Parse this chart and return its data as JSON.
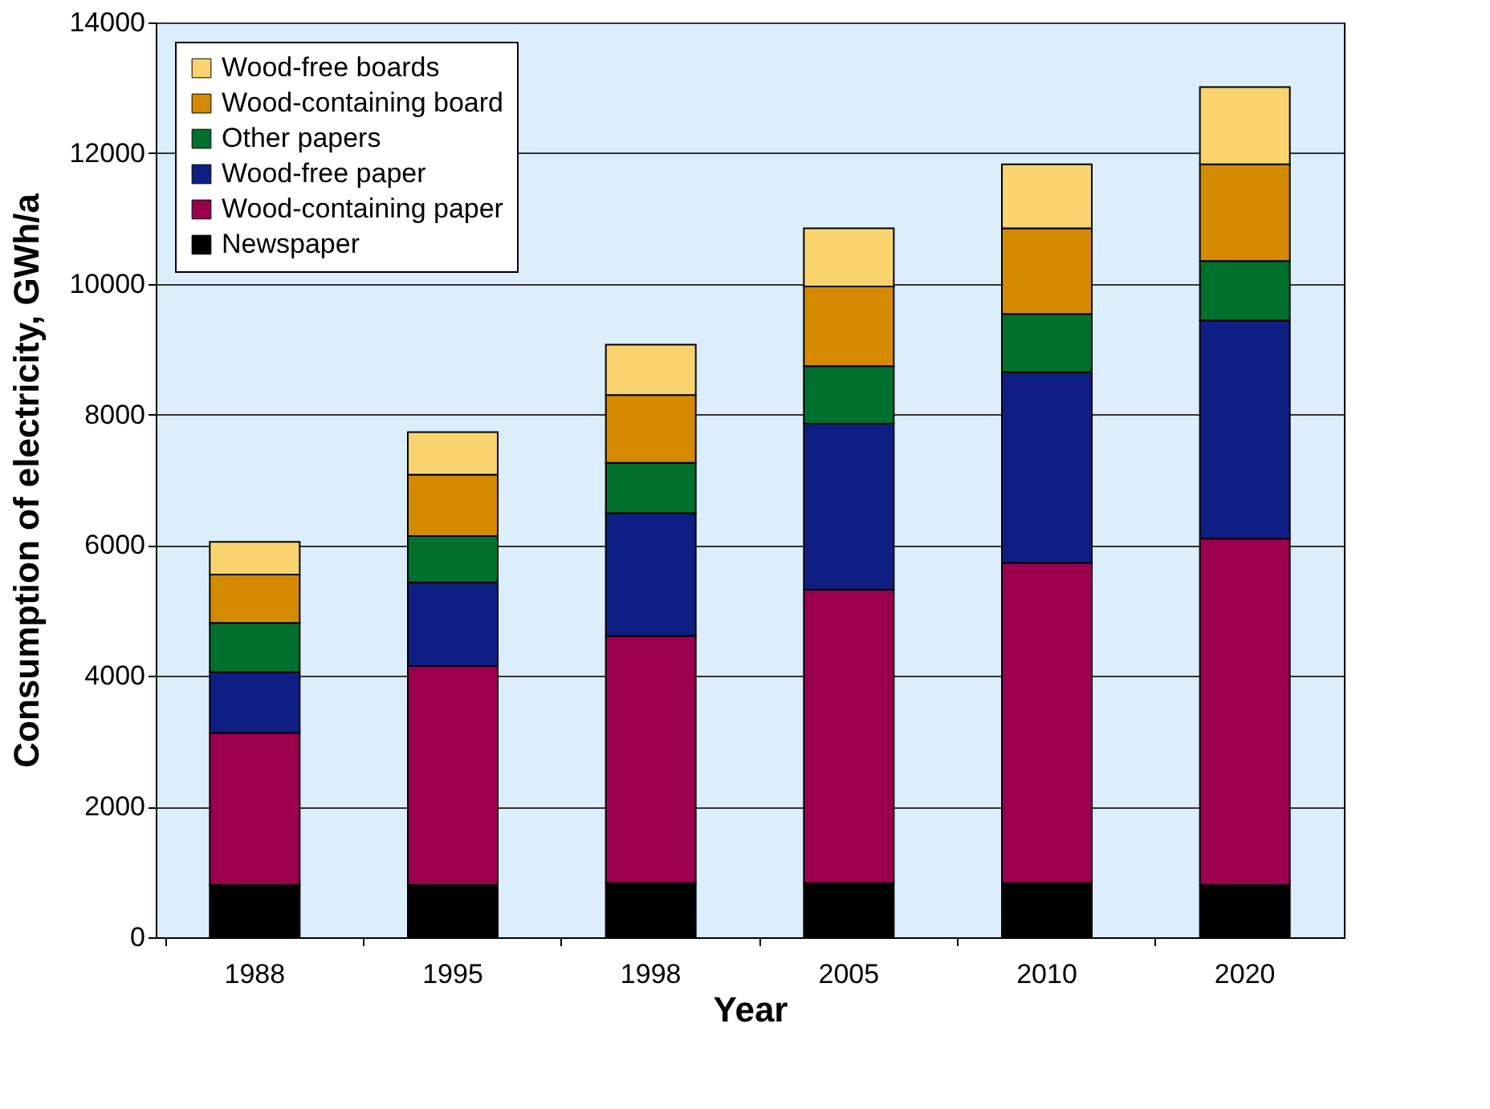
{
  "chart_data": {
    "type": "bar",
    "stacked": true,
    "xlabel": "Year",
    "ylabel": "Consumption of electricity, GWh/a",
    "categories": [
      "1988",
      "1995",
      "1998",
      "2005",
      "2010",
      "2020"
    ],
    "series": [
      {
        "name": "Newspaper",
        "color": "#000000",
        "values": [
          800,
          800,
          830,
          830,
          830,
          800
        ]
      },
      {
        "name": "Wood-containing paper",
        "color": "#9b004f",
        "values": [
          2330,
          3350,
          3780,
          4490,
          4900,
          5300
        ]
      },
      {
        "name": "Wood-free paper",
        "color": "#0f1e82",
        "values": [
          930,
          1280,
          1880,
          2540,
          2920,
          3340
        ]
      },
      {
        "name": "Other papers",
        "color": "#00702e",
        "values": [
          750,
          710,
          770,
          880,
          890,
          910
        ]
      },
      {
        "name": "Wood-containing board",
        "color": "#d48a00",
        "values": [
          740,
          940,
          1040,
          1220,
          1310,
          1480
        ]
      },
      {
        "name": "Wood-free boards",
        "color": "#f9d46e",
        "values": [
          500,
          650,
          770,
          890,
          980,
          1180
        ]
      }
    ],
    "ylim": [
      0,
      14000
    ],
    "yticks": [
      0,
      2000,
      4000,
      6000,
      8000,
      10000,
      12000,
      14000
    ],
    "grid": "y",
    "legend": "top left"
  }
}
